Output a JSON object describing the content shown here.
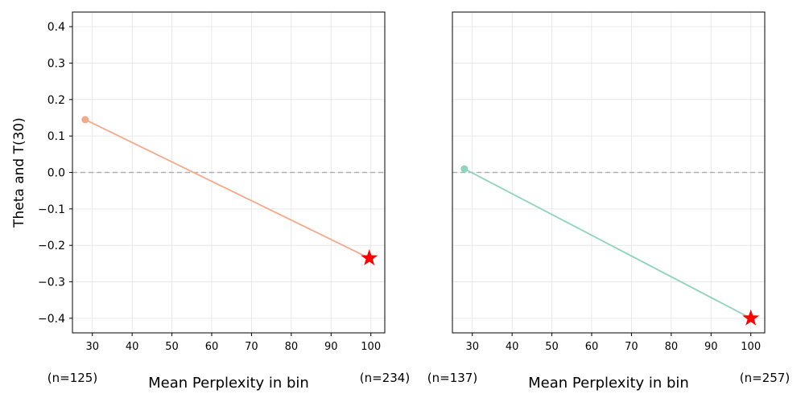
{
  "chart_data": [
    {
      "type": "line",
      "title": "",
      "xlabel": "Mean Perplexity in bin",
      "ylabel": "Theta and T(30)",
      "xlim": [
        25,
        103.5
      ],
      "ylim": [
        -0.44,
        0.44
      ],
      "xticks": [
        30,
        40,
        50,
        60,
        70,
        80,
        90,
        100
      ],
      "yticks": [
        -0.4,
        -0.3,
        -0.2,
        -0.1,
        0.0,
        0.1,
        0.2,
        0.3,
        0.4
      ],
      "show_yticklabels": true,
      "grid": true,
      "reference_line_y": 0,
      "series": [
        {
          "name": "theta",
          "color": "#f4a98a",
          "x": [
            28.2,
            99.6
          ],
          "y": [
            0.145,
            -0.235
          ]
        }
      ],
      "highlight": {
        "x": 99.6,
        "y": -0.235,
        "marker": "star",
        "color": "#ff0000"
      },
      "bin_labels": [
        "(n=125)",
        "(n=234)"
      ]
    },
    {
      "type": "line",
      "title": "",
      "xlabel": "Mean Perplexity in bin",
      "ylabel": "",
      "xlim": [
        25,
        103.5
      ],
      "ylim": [
        -0.44,
        0.44
      ],
      "xticks": [
        30,
        40,
        50,
        60,
        70,
        80,
        90,
        100
      ],
      "yticks": [
        -0.4,
        -0.3,
        -0.2,
        -0.1,
        0.0,
        0.1,
        0.2,
        0.3,
        0.4
      ],
      "show_yticklabels": false,
      "grid": true,
      "reference_line_y": 0,
      "series": [
        {
          "name": "theta",
          "color": "#8fd3bd",
          "x": [
            28.0,
            100.0
          ],
          "y": [
            0.01,
            -0.4
          ]
        }
      ],
      "highlight": {
        "x": 100.0,
        "y": -0.4,
        "marker": "star",
        "color": "#ff0000"
      },
      "bin_labels": [
        "(n=137)",
        "(n=257)"
      ]
    }
  ]
}
